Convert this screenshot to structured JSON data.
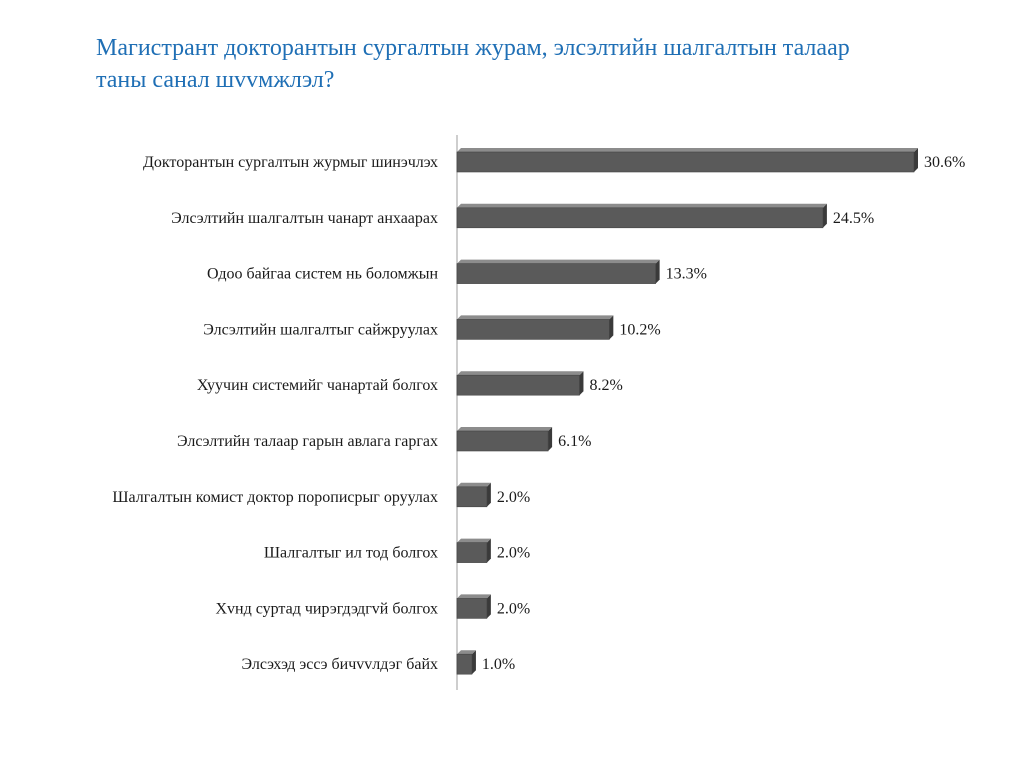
{
  "slide": {
    "title_line1": "Магистрант докторантын сургалтын журам, элсэлтийн шалгалтын талаар",
    "title_line2": "таны санал шvvмжлэл?"
  },
  "colors": {
    "title": "#1f6fb5",
    "bar_fill": "#5a5a5a",
    "bar_top": "#8c8c8c",
    "bar_side": "#3a3a3a",
    "axis": "#bdbdbd"
  },
  "chart_data": {
    "type": "bar",
    "orientation": "horizontal",
    "categories": [
      "Докторантын сургалтын журмыг шинэчлэх",
      "Элсэлтийн шалгалтын чанарт анхаарах",
      "Одоо байгаа систем нь боломжын",
      "Элсэлтийн шалгалтыг сайжруулах",
      "Хуучин системийг чанартай болгох",
      "Элсэлтийн талаар гарын авлага гаргах",
      "Шалгалтын комист доктор порописрыг оруулах",
      "Шалгалтыг ил тод болгох",
      "Хvнд суртад чирэгдэдгvй болгох",
      "Элсэхэд эссэ бичvvлдэг байх"
    ],
    "values": [
      30.6,
      24.5,
      13.3,
      10.2,
      8.2,
      6.1,
      2.0,
      2.0,
      2.0,
      1.0
    ],
    "value_labels": [
      "30.6%",
      "24.5%",
      "13.3%",
      "10.2%",
      "8.2%",
      "6.1%",
      "2.0%",
      "2.0%",
      "2.0%",
      "1.0%"
    ],
    "xlim": [
      0,
      30.6
    ],
    "grid": false,
    "legend": "none",
    "style": "3d-bar"
  }
}
